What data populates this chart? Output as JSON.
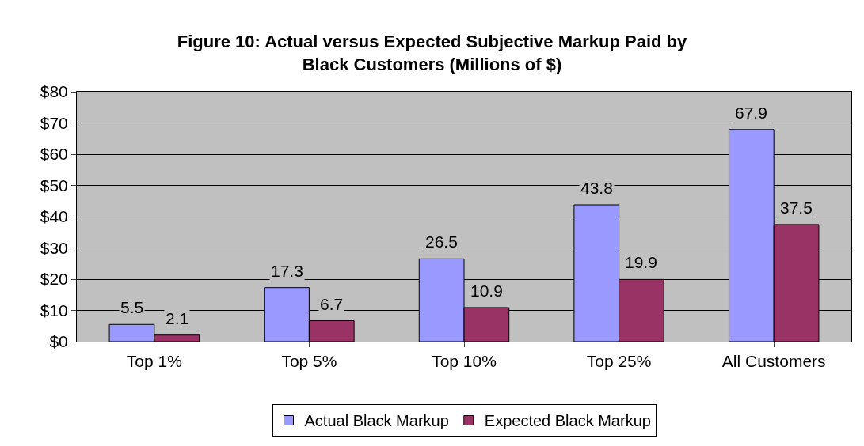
{
  "chart_data": {
    "type": "bar",
    "title": "Figure 10: Actual versus Expected Subjective Markup Paid by\nBlack Customers (Millions of $)",
    "categories": [
      "Top 1%",
      "Top 5%",
      "Top 10%",
      "Top 25%",
      "All Customers"
    ],
    "series": [
      {
        "name": "Actual Black Markup",
        "color": "#9999ff",
        "values": [
          5.5,
          17.3,
          26.5,
          43.8,
          67.9
        ]
      },
      {
        "name": "Expected Black Markup",
        "color": "#993366",
        "values": [
          2.1,
          6.7,
          10.9,
          19.9,
          37.5
        ]
      }
    ],
    "ylim": [
      0,
      80
    ],
    "yticks": [
      {
        "value": 0,
        "label": "$0"
      },
      {
        "value": 10,
        "label": "$10"
      },
      {
        "value": 20,
        "label": "$20"
      },
      {
        "value": 30,
        "label": "$30"
      },
      {
        "value": 40,
        "label": "$40"
      },
      {
        "value": 50,
        "label": "$50"
      },
      {
        "value": 60,
        "label": "$60"
      },
      {
        "value": 70,
        "label": "$70"
      },
      {
        "value": 80,
        "label": "$80"
      }
    ],
    "grid": "y",
    "legend": "bottom",
    "data_labels": true
  }
}
